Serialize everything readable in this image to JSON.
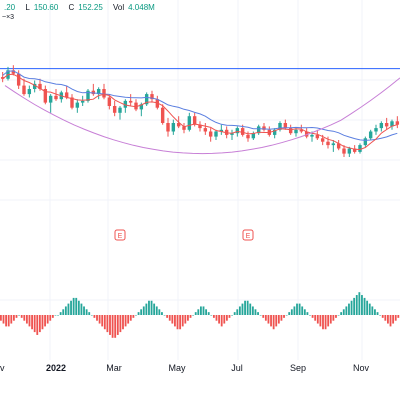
{
  "header": {
    "items": [
      {
        "label": "",
        "value": ".20"
      },
      {
        "label": "L",
        "value": "150.60"
      },
      {
        "label": "C",
        "value": "152.25"
      },
      {
        "label": "Vol",
        "value": "4.048M"
      }
    ],
    "corner_mark": "~×3"
  },
  "colors": {
    "up": "#26a69a",
    "down": "#ef5350",
    "ma_fast": "#ef5350",
    "ma_slow": "#5b7fe0",
    "curve": "#c77fd6",
    "hline": "#2962ff",
    "osc_up": "#26a69a",
    "osc_down": "#ef5350",
    "grid": "#f0f3fa",
    "text": "#131722"
  },
  "chart_data": [
    {
      "type": "candlestick",
      "title": "",
      "x_labels": [
        "2022",
        "Mar",
        "May",
        "Jul",
        "Sep",
        "Nov"
      ],
      "x_label_left_partial": "v",
      "ylim": [
        0,
        100
      ],
      "hline_value": 92,
      "candles": [
        {
          "o": 87,
          "h": 90,
          "l": 84,
          "c": 86
        },
        {
          "o": 86,
          "h": 93,
          "l": 85,
          "c": 91
        },
        {
          "o": 91,
          "h": 94,
          "l": 88,
          "c": 89
        },
        {
          "o": 89,
          "h": 91,
          "l": 80,
          "c": 82
        },
        {
          "o": 82,
          "h": 86,
          "l": 76,
          "c": 77
        },
        {
          "o": 77,
          "h": 82,
          "l": 75,
          "c": 80
        },
        {
          "o": 80,
          "h": 85,
          "l": 78,
          "c": 83
        },
        {
          "o": 83,
          "h": 86,
          "l": 79,
          "c": 80
        },
        {
          "o": 80,
          "h": 82,
          "l": 71,
          "c": 72
        },
        {
          "o": 72,
          "h": 77,
          "l": 66,
          "c": 76
        },
        {
          "o": 76,
          "h": 80,
          "l": 73,
          "c": 74
        },
        {
          "o": 74,
          "h": 79,
          "l": 72,
          "c": 78
        },
        {
          "o": 78,
          "h": 82,
          "l": 74,
          "c": 75
        },
        {
          "o": 75,
          "h": 77,
          "l": 68,
          "c": 69
        },
        {
          "o": 69,
          "h": 74,
          "l": 66,
          "c": 72
        },
        {
          "o": 72,
          "h": 76,
          "l": 70,
          "c": 73
        },
        {
          "o": 73,
          "h": 80,
          "l": 72,
          "c": 79
        },
        {
          "o": 79,
          "h": 83,
          "l": 76,
          "c": 77
        },
        {
          "o": 77,
          "h": 81,
          "l": 74,
          "c": 80
        },
        {
          "o": 80,
          "h": 83,
          "l": 74,
          "c": 75
        },
        {
          "o": 75,
          "h": 76,
          "l": 68,
          "c": 70
        },
        {
          "o": 70,
          "h": 73,
          "l": 64,
          "c": 66
        },
        {
          "o": 66,
          "h": 70,
          "l": 62,
          "c": 69
        },
        {
          "o": 69,
          "h": 74,
          "l": 66,
          "c": 73
        },
        {
          "o": 73,
          "h": 77,
          "l": 70,
          "c": 72
        },
        {
          "o": 72,
          "h": 74,
          "l": 67,
          "c": 68
        },
        {
          "o": 68,
          "h": 72,
          "l": 64,
          "c": 71
        },
        {
          "o": 71,
          "h": 78,
          "l": 70,
          "c": 77
        },
        {
          "o": 77,
          "h": 79,
          "l": 72,
          "c": 74
        },
        {
          "o": 74,
          "h": 76,
          "l": 68,
          "c": 69
        },
        {
          "o": 69,
          "h": 71,
          "l": 59,
          "c": 60
        },
        {
          "o": 60,
          "h": 63,
          "l": 52,
          "c": 55
        },
        {
          "o": 55,
          "h": 62,
          "l": 53,
          "c": 60
        },
        {
          "o": 60,
          "h": 64,
          "l": 57,
          "c": 58
        },
        {
          "o": 58,
          "h": 60,
          "l": 54,
          "c": 56
        },
        {
          "o": 56,
          "h": 66,
          "l": 55,
          "c": 64
        },
        {
          "o": 64,
          "h": 66,
          "l": 58,
          "c": 59
        },
        {
          "o": 59,
          "h": 61,
          "l": 55,
          "c": 57
        },
        {
          "o": 57,
          "h": 60,
          "l": 53,
          "c": 55
        },
        {
          "o": 55,
          "h": 57,
          "l": 49,
          "c": 52
        },
        {
          "o": 52,
          "h": 56,
          "l": 50,
          "c": 55
        },
        {
          "o": 55,
          "h": 59,
          "l": 53,
          "c": 56
        },
        {
          "o": 56,
          "h": 58,
          "l": 51,
          "c": 53
        },
        {
          "o": 53,
          "h": 56,
          "l": 50,
          "c": 54
        },
        {
          "o": 54,
          "h": 58,
          "l": 52,
          "c": 57
        },
        {
          "o": 57,
          "h": 59,
          "l": 52,
          "c": 53
        },
        {
          "o": 53,
          "h": 55,
          "l": 49,
          "c": 51
        },
        {
          "o": 51,
          "h": 55,
          "l": 50,
          "c": 54
        },
        {
          "o": 54,
          "h": 59,
          "l": 53,
          "c": 58
        },
        {
          "o": 58,
          "h": 60,
          "l": 55,
          "c": 56
        },
        {
          "o": 56,
          "h": 58,
          "l": 52,
          "c": 53
        },
        {
          "o": 53,
          "h": 57,
          "l": 51,
          "c": 56
        },
        {
          "o": 56,
          "h": 61,
          "l": 55,
          "c": 60
        },
        {
          "o": 60,
          "h": 62,
          "l": 56,
          "c": 57
        },
        {
          "o": 57,
          "h": 59,
          "l": 53,
          "c": 54
        },
        {
          "o": 54,
          "h": 57,
          "l": 52,
          "c": 56
        },
        {
          "o": 56,
          "h": 59,
          "l": 54,
          "c": 55
        },
        {
          "o": 55,
          "h": 57,
          "l": 51,
          "c": 52
        },
        {
          "o": 52,
          "h": 55,
          "l": 49,
          "c": 53
        },
        {
          "o": 53,
          "h": 56,
          "l": 50,
          "c": 51
        },
        {
          "o": 51,
          "h": 53,
          "l": 47,
          "c": 49
        },
        {
          "o": 49,
          "h": 52,
          "l": 45,
          "c": 47
        },
        {
          "o": 47,
          "h": 50,
          "l": 43,
          "c": 48
        },
        {
          "o": 48,
          "h": 50,
          "l": 44,
          "c": 45
        },
        {
          "o": 45,
          "h": 47,
          "l": 40,
          "c": 42
        },
        {
          "o": 42,
          "h": 46,
          "l": 40,
          "c": 45
        },
        {
          "o": 45,
          "h": 47,
          "l": 42,
          "c": 43
        },
        {
          "o": 43,
          "h": 48,
          "l": 42,
          "c": 47
        },
        {
          "o": 47,
          "h": 52,
          "l": 46,
          "c": 51
        },
        {
          "o": 51,
          "h": 56,
          "l": 50,
          "c": 55
        },
        {
          "o": 55,
          "h": 59,
          "l": 53,
          "c": 57
        },
        {
          "o": 57,
          "h": 61,
          "l": 55,
          "c": 60
        },
        {
          "o": 60,
          "h": 63,
          "l": 56,
          "c": 58
        },
        {
          "o": 58,
          "h": 62,
          "l": 56,
          "c": 61
        },
        {
          "o": 61,
          "h": 64,
          "l": 57,
          "c": 59
        }
      ],
      "indicators": [
        "moving-average-fast",
        "moving-average-slow",
        "rounding-curve"
      ],
      "event_markers": [
        {
          "index": 22,
          "label": "E"
        },
        {
          "index": 46,
          "label": "E"
        }
      ]
    },
    {
      "type": "bar",
      "title": "",
      "name": "",
      "ylim": [
        -10,
        10
      ],
      "values": [
        -2,
        -3,
        -4,
        -4,
        -3,
        -2,
        -1,
        0,
        -1,
        -2,
        -3,
        -4,
        -5,
        -6,
        -7,
        -6,
        -5,
        -4,
        -3,
        -2,
        -1,
        0,
        0,
        1,
        2,
        3,
        4,
        5,
        6,
        6,
        5,
        4,
        3,
        2,
        1,
        0,
        -1,
        -2,
        -3,
        -4,
        -5,
        -6,
        -7,
        -8,
        -8,
        -7,
        -6,
        -5,
        -4,
        -3,
        -2,
        -1,
        0,
        1,
        2,
        3,
        4,
        5,
        5,
        4,
        3,
        2,
        1,
        0,
        -1,
        -2,
        -3,
        -4,
        -5,
        -5,
        -4,
        -3,
        -2,
        -1,
        0,
        1,
        2,
        3,
        3,
        2,
        1,
        0,
        -1,
        -2,
        -3,
        -4,
        -3,
        -2,
        -1,
        0,
        1,
        2,
        3,
        4,
        5,
        5,
        4,
        3,
        2,
        1,
        0,
        -1,
        -2,
        -3,
        -4,
        -5,
        -4,
        -3,
        -2,
        -1,
        0,
        1,
        2,
        3,
        4,
        4,
        3,
        2,
        1,
        0,
        -1,
        -2,
        -3,
        -4,
        -5,
        -5,
        -4,
        -3,
        -2,
        -1,
        0,
        1,
        2,
        3,
        4,
        5,
        6,
        7,
        8,
        7,
        6,
        5,
        4,
        3,
        2,
        1,
        0,
        -1,
        -2,
        -3,
        -4,
        -3,
        -2,
        -1
      ]
    }
  ]
}
